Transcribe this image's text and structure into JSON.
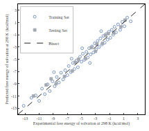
{
  "chart_data": {
    "type": "scatter",
    "xlabel": "Experimental free energy of solvation at 298 K (kcal/mol)",
    "ylabel": "Predicted free energy of solvation at 298 K (kcal/mol)",
    "xlim": [
      -14,
      4
    ],
    "xticks": [
      -13,
      -11,
      -9,
      -7,
      -5,
      -3,
      -1,
      1,
      3
    ],
    "ylim": [
      -14,
      4
    ],
    "yticks": [
      -13,
      -11,
      -9,
      -7,
      -5,
      -3,
      -1,
      1,
      3
    ],
    "grid": false,
    "legend": "top-left",
    "series": [
      {
        "name": "Training Set",
        "type": "scatter",
        "marker": "circle-open",
        "color": "#5b7fb6",
        "x": [
          -12.1,
          -11.5,
          -11.0,
          -10.6,
          -10.2,
          -9.8,
          -9.5,
          -9.1,
          -8.8,
          -8.5,
          -8.2,
          -7.9,
          -7.6,
          -7.3,
          -7.0,
          -6.8,
          -6.5,
          -6.2,
          -6.0,
          -5.7,
          -5.5,
          -5.2,
          -5.0,
          -4.8,
          -4.6,
          -4.3,
          -4.1,
          -3.9,
          -3.7,
          -3.5,
          -3.3,
          -3.1,
          -2.9,
          -2.7,
          -2.5,
          -2.3,
          -2.1,
          -1.9,
          -1.7,
          -1.5,
          -1.3,
          -1.1,
          -0.9,
          -0.7,
          -0.5,
          -0.3,
          -0.1,
          0.2,
          0.5,
          0.8,
          1.1,
          1.5,
          2.0,
          -13.2,
          -6.4,
          -3.8,
          -2.2,
          -8.9,
          -4.9
        ],
        "values": [
          -11.3,
          -10.9,
          -11.8,
          -9.8,
          -10.7,
          -9.1,
          -10.2,
          -8.6,
          -9.4,
          -7.9,
          -8.8,
          -7.2,
          -8.3,
          -6.8,
          -7.6,
          -6.1,
          -7.1,
          -5.6,
          -6.6,
          -5.2,
          -6.3,
          -4.6,
          -5.4,
          -4.1,
          -5.1,
          -3.8,
          -4.7,
          -3.2,
          -4.2,
          -2.9,
          -3.9,
          -2.4,
          -3.4,
          -2.0,
          -3.0,
          -1.6,
          -2.6,
          -1.2,
          -2.3,
          -0.9,
          -1.8,
          -0.5,
          -1.5,
          -0.2,
          -1.0,
          0.3,
          -0.6,
          0.7,
          -0.2,
          1.1,
          0.4,
          1.8,
          1.2,
          -12.6,
          -4.9,
          -5.6,
          -0.4,
          -7.1,
          -3.2
        ]
      },
      {
        "name": "Testing Set",
        "type": "scatter",
        "marker": "square",
        "color": "#a3a9b3",
        "x": [
          -11.8,
          -10.0,
          -8.6,
          -7.4,
          -6.3,
          -5.4,
          -4.4,
          -3.6,
          -2.8,
          -2.0,
          -1.2,
          -0.4,
          0.6,
          1.2,
          -9.3,
          -5.9,
          -3.0,
          -1.6
        ],
        "values": [
          -11.0,
          -9.2,
          -9.0,
          -7.8,
          -6.9,
          -5.0,
          -4.9,
          -3.1,
          -2.5,
          -2.4,
          -0.8,
          -0.7,
          0.3,
          1.4,
          -8.2,
          -5.5,
          -3.7,
          -1.1
        ]
      },
      {
        "name": "Bisect",
        "type": "line",
        "line_style": "dashed",
        "color": "#222222",
        "x": [
          -14,
          4
        ],
        "values": [
          -14,
          4
        ]
      }
    ]
  }
}
